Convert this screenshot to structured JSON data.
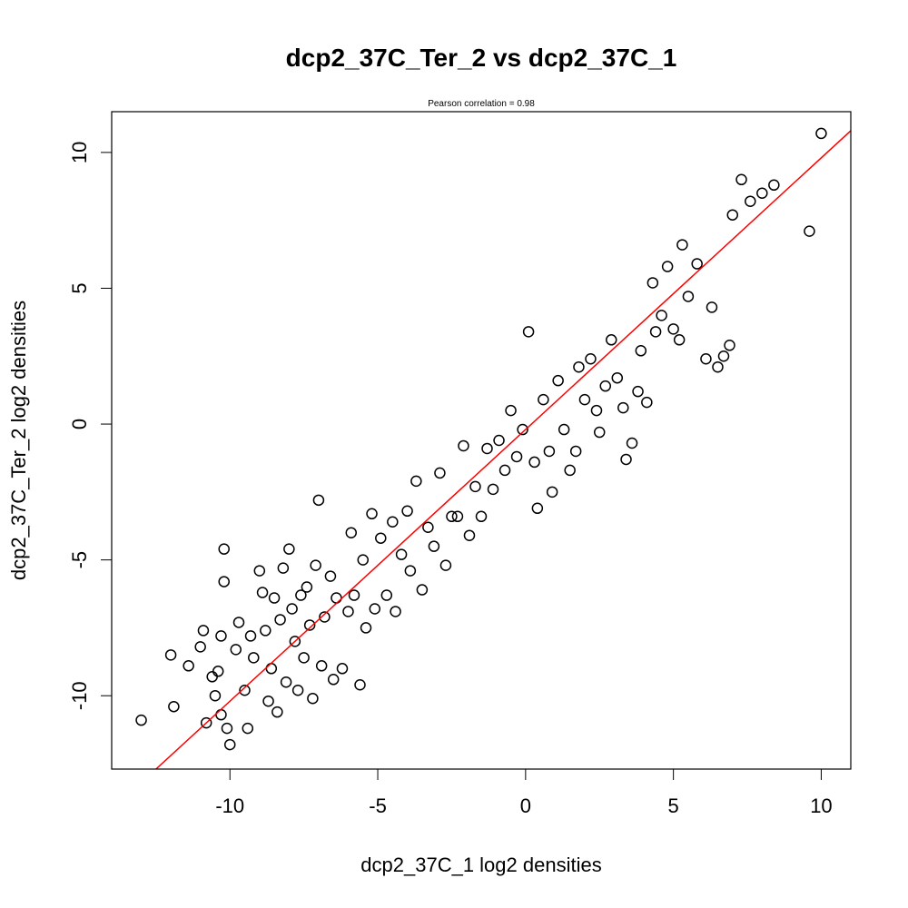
{
  "chart_data": {
    "type": "scatter",
    "title": "dcp2_37C_Ter_2 vs dcp2_37C_1",
    "subtitle": "Pearson correlation =  0.98",
    "xlabel": "dcp2_37C_1 log2 densities",
    "ylabel": "dcp2_37C_Ter_2 log2 densities",
    "xlim": [
      -14.0,
      11.0
    ],
    "ylim": [
      -12.7,
      11.5
    ],
    "xticks": [
      -10,
      -5,
      0,
      5,
      10
    ],
    "yticks": [
      -10,
      -5,
      0,
      5,
      10
    ],
    "xtick_labels": [
      "-10",
      "-5",
      "0",
      "5",
      "10"
    ],
    "ytick_labels": [
      "-10",
      "-5",
      "0",
      "5",
      "10"
    ],
    "grid": false,
    "point_color": "#000000",
    "fit_line": {
      "slope": 1.0,
      "intercept": -0.2,
      "color": "#ff0000"
    },
    "series": [
      {
        "points": [
          [
            -13.0,
            -10.9
          ],
          [
            -12.0,
            -8.5
          ],
          [
            -11.9,
            -10.4
          ],
          [
            -11.4,
            -8.9
          ],
          [
            -11.0,
            -8.2
          ],
          [
            -10.9,
            -7.6
          ],
          [
            -10.8,
            -11.0
          ],
          [
            -10.6,
            -9.3
          ],
          [
            -10.5,
            -10.0
          ],
          [
            -10.4,
            -9.1
          ],
          [
            -10.3,
            -10.7
          ],
          [
            -10.2,
            -4.6
          ],
          [
            -10.2,
            -5.8
          ],
          [
            -10.3,
            -7.8
          ],
          [
            -10.1,
            -11.2
          ],
          [
            -10.0,
            -11.8
          ],
          [
            -9.8,
            -8.3
          ],
          [
            -9.7,
            -7.3
          ],
          [
            -9.5,
            -9.8
          ],
          [
            -9.4,
            -11.2
          ],
          [
            -9.3,
            -7.8
          ],
          [
            -9.2,
            -8.6
          ],
          [
            -9.0,
            -5.4
          ],
          [
            -8.9,
            -6.2
          ],
          [
            -8.8,
            -7.6
          ],
          [
            -8.7,
            -10.2
          ],
          [
            -8.6,
            -9.0
          ],
          [
            -8.5,
            -6.4
          ],
          [
            -8.4,
            -10.6
          ],
          [
            -8.3,
            -7.2
          ],
          [
            -8.2,
            -5.3
          ],
          [
            -8.1,
            -9.5
          ],
          [
            -8.0,
            -4.6
          ],
          [
            -7.9,
            -6.8
          ],
          [
            -7.8,
            -8.0
          ],
          [
            -7.7,
            -9.8
          ],
          [
            -7.6,
            -6.3
          ],
          [
            -7.5,
            -8.6
          ],
          [
            -7.4,
            -6.0
          ],
          [
            -7.3,
            -7.4
          ],
          [
            -7.2,
            -10.1
          ],
          [
            -7.1,
            -5.2
          ],
          [
            -7.0,
            -2.8
          ],
          [
            -6.9,
            -8.9
          ],
          [
            -6.8,
            -7.1
          ],
          [
            -6.6,
            -5.6
          ],
          [
            -6.5,
            -9.4
          ],
          [
            -6.4,
            -6.4
          ],
          [
            -6.2,
            -9.0
          ],
          [
            -6.0,
            -6.9
          ],
          [
            -5.9,
            -4.0
          ],
          [
            -5.8,
            -6.3
          ],
          [
            -5.6,
            -9.6
          ],
          [
            -5.5,
            -5.0
          ],
          [
            -5.4,
            -7.5
          ],
          [
            -5.2,
            -3.3
          ],
          [
            -5.1,
            -6.8
          ],
          [
            -4.9,
            -4.2
          ],
          [
            -4.7,
            -6.3
          ],
          [
            -4.5,
            -3.6
          ],
          [
            -4.4,
            -6.9
          ],
          [
            -4.2,
            -4.8
          ],
          [
            -4.0,
            -3.2
          ],
          [
            -3.9,
            -5.4
          ],
          [
            -3.7,
            -2.1
          ],
          [
            -3.5,
            -6.1
          ],
          [
            -3.3,
            -3.8
          ],
          [
            -3.1,
            -4.5
          ],
          [
            -2.9,
            -1.8
          ],
          [
            -2.7,
            -5.2
          ],
          [
            -2.5,
            -3.4
          ],
          [
            -2.3,
            -3.4
          ],
          [
            -2.1,
            -0.8
          ],
          [
            -1.9,
            -4.1
          ],
          [
            -1.7,
            -2.3
          ],
          [
            -1.5,
            -3.4
          ],
          [
            -1.3,
            -0.9
          ],
          [
            -1.1,
            -2.4
          ],
          [
            -0.9,
            -0.6
          ],
          [
            -0.7,
            -1.7
          ],
          [
            -0.5,
            0.5
          ],
          [
            -0.3,
            -1.2
          ],
          [
            -0.1,
            -0.2
          ],
          [
            0.1,
            3.4
          ],
          [
            0.3,
            -1.4
          ],
          [
            0.4,
            -3.1
          ],
          [
            0.6,
            0.9
          ],
          [
            0.8,
            -1.0
          ],
          [
            0.9,
            -2.5
          ],
          [
            1.1,
            1.6
          ],
          [
            1.3,
            -0.2
          ],
          [
            1.5,
            -1.7
          ],
          [
            1.7,
            -1.0
          ],
          [
            1.8,
            2.1
          ],
          [
            2.0,
            0.9
          ],
          [
            2.2,
            2.4
          ],
          [
            2.4,
            0.5
          ],
          [
            2.5,
            -0.3
          ],
          [
            2.7,
            1.4
          ],
          [
            2.9,
            3.1
          ],
          [
            3.1,
            1.7
          ],
          [
            3.3,
            0.6
          ],
          [
            3.4,
            -1.3
          ],
          [
            3.6,
            -0.7
          ],
          [
            3.8,
            1.2
          ],
          [
            3.9,
            2.7
          ],
          [
            4.1,
            0.8
          ],
          [
            4.3,
            5.2
          ],
          [
            4.4,
            3.4
          ],
          [
            4.6,
            4.0
          ],
          [
            4.8,
            5.8
          ],
          [
            5.0,
            3.5
          ],
          [
            5.2,
            3.1
          ],
          [
            5.3,
            6.6
          ],
          [
            5.5,
            4.7
          ],
          [
            5.8,
            5.9
          ],
          [
            6.1,
            2.4
          ],
          [
            6.3,
            4.3
          ],
          [
            6.5,
            2.1
          ],
          [
            6.7,
            2.5
          ],
          [
            6.9,
            2.9
          ],
          [
            7.0,
            7.7
          ],
          [
            7.3,
            9.0
          ],
          [
            7.6,
            8.2
          ],
          [
            8.0,
            8.5
          ],
          [
            8.4,
            8.8
          ],
          [
            9.6,
            7.1
          ],
          [
            10.0,
            10.7
          ]
        ]
      }
    ]
  }
}
